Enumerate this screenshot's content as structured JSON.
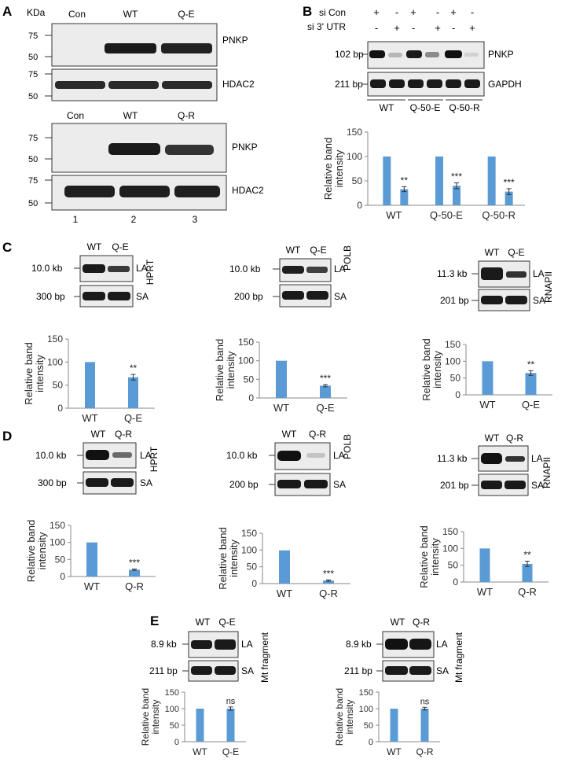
{
  "panels": {
    "A": {
      "letter": "A",
      "unit": "KDa",
      "lanes_top": [
        "Con",
        "WT",
        "Q-E"
      ],
      "lanes_bottom": [
        "Con",
        "WT",
        "Q-R"
      ],
      "markers_a": [
        "75",
        "50"
      ],
      "markers_b": [
        "75",
        "50"
      ],
      "markers_c": [
        "75",
        "50"
      ],
      "markers_d": [
        "75",
        "50"
      ],
      "label_pnkp": "PNKP",
      "label_hdac2": "HDAC2",
      "lane_numbers": [
        "1",
        "2",
        "3"
      ]
    },
    "B": {
      "letter": "B",
      "row1_label": "si Con",
      "row2_label": "si 3' UTR",
      "row1_signs": [
        "+",
        "-",
        "+",
        "-",
        "+",
        "-"
      ],
      "row2_signs": [
        "-",
        "+",
        "-",
        "+",
        "-",
        "+"
      ],
      "size_top": "102 bp",
      "size_bottom": "211 bp",
      "label_pnkp": "PNKP",
      "label_gapdh": "GAPDH",
      "groups": [
        "WT",
        "Q-50-E",
        "Q-50-R"
      ]
    },
    "C": {
      "letter": "C"
    },
    "D": {
      "letter": "D"
    },
    "E": {
      "letter": "E"
    },
    "C1": {
      "lanes": [
        "WT",
        "Q-E"
      ],
      "size_la": "10.0 kb",
      "size_sa": "300 bp",
      "la": "LA",
      "sa": "SA",
      "gene": "HPRT"
    },
    "C2": {
      "lanes": [
        "WT",
        "Q-E"
      ],
      "size_la": "10.0 kb",
      "size_sa": "200 bp",
      "la": "LA",
      "sa": "SA",
      "gene": "POLB"
    },
    "C3": {
      "lanes": [
        "WT",
        "Q-E"
      ],
      "size_la": "11.3 kb",
      "size_sa": "201 bp",
      "la": "LA",
      "sa": "SA",
      "gene": "RNAPII"
    },
    "D1": {
      "lanes": [
        "WT",
        "Q-R"
      ],
      "size_la": "10.0 kb",
      "size_sa": "300 bp",
      "la": "LA",
      "sa": "SA",
      "gene": "HPRT"
    },
    "D2": {
      "lanes": [
        "WT",
        "Q-R"
      ],
      "size_la": "10.0 kb",
      "size_sa": "200 bp",
      "la": "LA",
      "sa": "SA",
      "gene": "POLB"
    },
    "D3": {
      "lanes": [
        "WT",
        "Q-R"
      ],
      "size_la": "11.3 kb",
      "size_sa": "201 bp",
      "la": "LA",
      "sa": "SA",
      "gene": "RNAPII"
    },
    "E1": {
      "lanes": [
        "WT",
        "Q-E"
      ],
      "size_la": "8.9 kb",
      "size_sa": "211 bp",
      "la": "LA",
      "sa": "SA",
      "gene": "Mt fragment"
    },
    "E2": {
      "lanes": [
        "WT",
        "Q-R"
      ],
      "size_la": "8.9 kb",
      "size_sa": "211 bp",
      "la": "LA",
      "sa": "SA",
      "gene": "Mt fragment"
    }
  },
  "colors": {
    "bar": "#5b9bd5",
    "band": "#1a1a1a",
    "blot_bg": "#ececec"
  },
  "chart_data": [
    {
      "id": "B",
      "type": "bar",
      "categories": [
        "WT",
        "Q-50-E",
        "Q-50-R"
      ],
      "series": [
        {
          "values": [
            100,
            100,
            100
          ]
        },
        {
          "values": [
            33,
            40,
            28
          ],
          "errors": [
            5,
            6,
            6
          ],
          "annotations": [
            "**",
            "***",
            "***"
          ]
        }
      ],
      "ylabel": "Relative band intensity",
      "ylim": [
        0,
        150
      ],
      "yticks": [
        "0",
        "50",
        "100",
        "150"
      ]
    },
    {
      "id": "C1",
      "type": "bar",
      "categories": [
        "WT",
        "Q-E"
      ],
      "values": [
        100,
        67
      ],
      "errors": [
        0,
        6
      ],
      "annotations": [
        "",
        "**"
      ],
      "ylabel": "Relative band intensity",
      "ylim": [
        0,
        150
      ],
      "yticks": [
        "0",
        "50",
        "100",
        "150"
      ]
    },
    {
      "id": "C2",
      "type": "bar",
      "categories": [
        "WT",
        "Q-E"
      ],
      "values": [
        100,
        33
      ],
      "errors": [
        0,
        3
      ],
      "annotations": [
        "",
        "***"
      ],
      "ylabel": "Relative band intensity",
      "ylim": [
        0,
        150
      ],
      "yticks": [
        "0",
        "50",
        "100",
        "150"
      ]
    },
    {
      "id": "C3",
      "type": "bar",
      "categories": [
        "WT",
        "Q-E"
      ],
      "values": [
        100,
        65
      ],
      "errors": [
        0,
        7
      ],
      "annotations": [
        "",
        "**"
      ],
      "ylabel": "Relative band intensity",
      "ylim": [
        0,
        150
      ],
      "yticks": [
        "0",
        "50",
        "100",
        "150"
      ]
    },
    {
      "id": "D1",
      "type": "bar",
      "categories": [
        "WT",
        "Q-R"
      ],
      "values": [
        100,
        20
      ],
      "errors": [
        0,
        2
      ],
      "annotations": [
        "",
        "***"
      ],
      "ylabel": "Relative band intensity",
      "ylim": [
        0,
        150
      ],
      "yticks": [
        "0",
        "50",
        "100",
        "150"
      ]
    },
    {
      "id": "D2",
      "type": "bar",
      "categories": [
        "WT",
        "Q-R"
      ],
      "values": [
        99,
        9
      ],
      "errors": [
        0,
        2
      ],
      "annotations": [
        "",
        "***"
      ],
      "ylabel": "Relative band intensity",
      "ylim": [
        0,
        150
      ],
      "yticks": [
        "0",
        "50",
        "100",
        "150"
      ]
    },
    {
      "id": "D3",
      "type": "bar",
      "categories": [
        "WT",
        "Q-R"
      ],
      "values": [
        100,
        54
      ],
      "errors": [
        0,
        8
      ],
      "annotations": [
        "",
        "**"
      ],
      "ylabel": "Relative band intensity",
      "ylim": [
        0,
        150
      ],
      "yticks": [
        "0",
        "50",
        "100",
        "150"
      ]
    },
    {
      "id": "E1",
      "type": "bar",
      "categories": [
        "WT",
        "Q-E"
      ],
      "values": [
        100,
        100
      ],
      "errors": [
        0,
        5
      ],
      "annotations": [
        "",
        "ns"
      ],
      "ylabel": "Relative band intensity",
      "ylim": [
        0,
        150
      ],
      "yticks": [
        "0",
        "50",
        "100",
        "150"
      ]
    },
    {
      "id": "E2",
      "type": "bar",
      "categories": [
        "WT",
        "Q-R"
      ],
      "values": [
        100,
        100
      ],
      "errors": [
        0,
        4
      ],
      "annotations": [
        "",
        "ns"
      ],
      "ylabel": "Relative band intensity",
      "ylim": [
        0,
        150
      ],
      "yticks": [
        "0",
        "50",
        "100",
        "150"
      ]
    }
  ]
}
